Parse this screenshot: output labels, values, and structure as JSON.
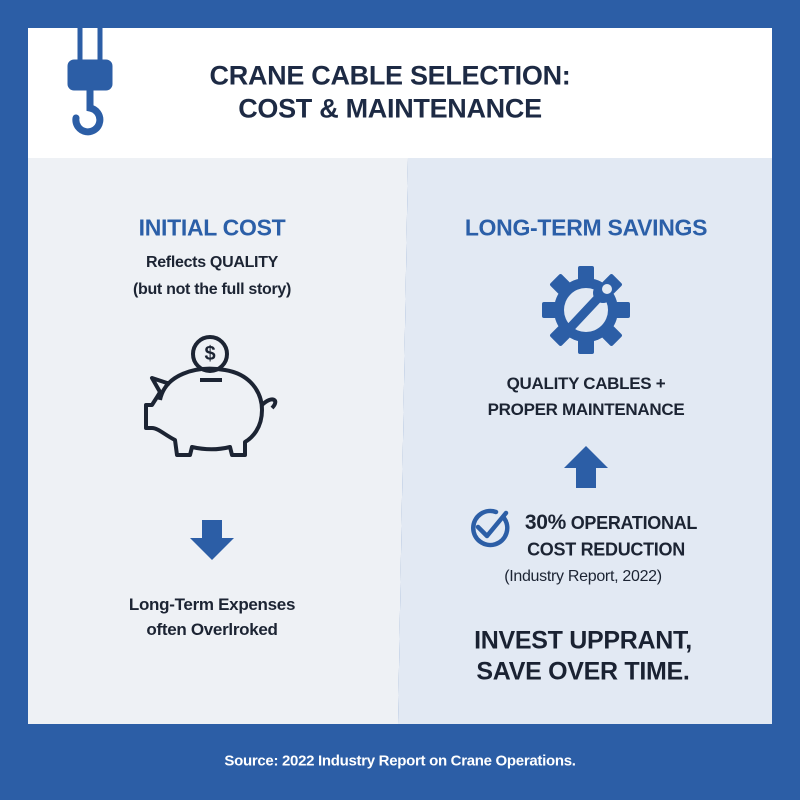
{
  "header": {
    "title": [
      "CRANE CABLE SELECTION:",
      "COST & MAINTENANCE"
    ]
  },
  "left": {
    "heading": "INITIAL COST",
    "subtitle": [
      "Reflects QUALITY",
      "(but not the full story)"
    ],
    "footer": [
      "Long-Term Expenses",
      "often Overlroked"
    ]
  },
  "right": {
    "heading": "LONG-TERM SAVINGS",
    "text": [
      "QUALITY CABLES +",
      "PROPER MAINTENANCE"
    ],
    "stat": {
      "value": "30%",
      "label": [
        "OPERATIONAL",
        "COST REDUCTION"
      ],
      "source": "(Industry Report, 2022)"
    },
    "slogan": [
      "INVEST UPPRANT,",
      "SAVE OVER TIME."
    ]
  },
  "footer": {
    "source": "Source: 2022 Industry Report on Crane Operations."
  }
}
